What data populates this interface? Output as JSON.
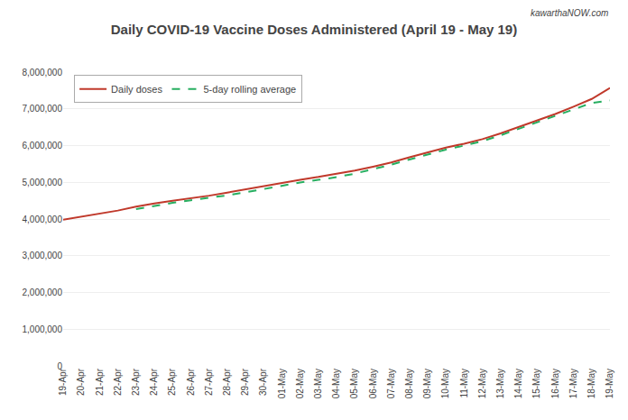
{
  "chart_data": {
    "type": "line",
    "title": "Daily COVID-19 Vaccine Doses Administered (April 19 - May 19)",
    "annotations": [
      "kawarthaNOW.com"
    ],
    "categories": [
      "19-Apr",
      "20-Apr",
      "21-Apr",
      "22-Apr",
      "23-Apr",
      "24-Apr",
      "25-Apr",
      "26-Apr",
      "27-Apr",
      "28-Apr",
      "29-Apr",
      "30-Apr",
      "01-May",
      "02-May",
      "03-May",
      "04-May",
      "05-May",
      "06-May",
      "07-May",
      "08-May",
      "09-May",
      "10-May",
      "11-May",
      "12-May",
      "13-May",
      "14-May",
      "15-May",
      "16-May",
      "17-May",
      "18-May",
      "19-May"
    ],
    "series": [
      {
        "name": "Daily doses",
        "color": "#C0392B",
        "line_style": "solid",
        "values": [
          3980000,
          4060000,
          4145000,
          4230000,
          4335000,
          4425000,
          4495000,
          4560000,
          4635000,
          4720000,
          4810000,
          4900000,
          4990000,
          5070000,
          5145000,
          5225000,
          5320000,
          5425000,
          5540000,
          5680000,
          5820000,
          5945000,
          6050000,
          6175000,
          6330000,
          6510000,
          6680000,
          6860000,
          7060000,
          7270000,
          7570000
        ]
      },
      {
        "name": "5-day rolling average",
        "color": "#27AE60",
        "line_style": "dashed",
        "values": [
          null,
          null,
          null,
          null,
          4270000,
          4360000,
          4440000,
          4510000,
          4570000,
          4645000,
          4725000,
          4820000,
          4910000,
          4995000,
          5065000,
          5140000,
          5235000,
          5350000,
          5480000,
          5620000,
          5760000,
          5890000,
          6000000,
          6120000,
          6280000,
          6455000,
          6625000,
          6800000,
          6990000,
          7160000,
          7230000
        ]
      }
    ],
    "ylim": [
      0,
      8000000
    ],
    "yticks": [
      0,
      {
        "value": 1000000,
        "label": "1,000,000"
      },
      {
        "value": 2000000,
        "label": "2,000,000"
      },
      {
        "value": 3000000,
        "label": "3,000,000"
      },
      {
        "value": 4000000,
        "label": "4,000,000"
      },
      {
        "value": 5000000,
        "label": "5,000,000"
      },
      {
        "value": 6000000,
        "label": "6,000,000"
      },
      {
        "value": 7000000,
        "label": "7,000,000"
      },
      {
        "value": 8000000,
        "label": "8,000,000"
      }
    ],
    "grid": true,
    "legend": "upper left"
  }
}
